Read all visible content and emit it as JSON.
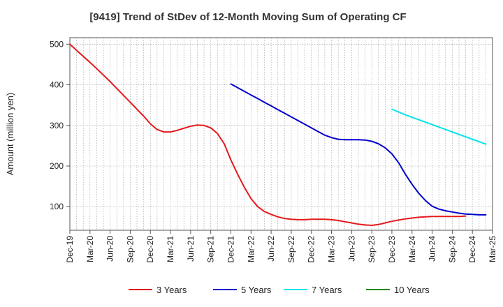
{
  "chart_data": {
    "type": "line",
    "title": "[9419]  Trend of StDev of 12-Month Moving Sum of Operating CF",
    "xlabel": "",
    "ylabel": "Amount (million yen)",
    "x_ticks": [
      "Dec-19",
      "Mar-20",
      "Jun-20",
      "Sep-20",
      "Dec-20",
      "Mar-21",
      "Jun-21",
      "Sep-21",
      "Dec-21",
      "Mar-22",
      "Jun-22",
      "Sep-22",
      "Dec-22",
      "Mar-23",
      "Jun-23",
      "Sep-23",
      "Dec-23",
      "Mar-24",
      "Jun-24",
      "Sep-24",
      "Dec-24",
      "Mar-25"
    ],
    "y_ticks": [
      100,
      200,
      300,
      400,
      500
    ],
    "ylim": [
      42,
      516
    ],
    "grid": true,
    "legend_position": "bottom",
    "colors": {
      "3y": "#e41a1c",
      "5y": "#0000cc",
      "7y": "#00e5ee",
      "10y": "#228b22"
    },
    "series": [
      {
        "name": "3 Years",
        "key": "3y",
        "start_index": 0,
        "values": [
          500,
          485,
          470,
          455,
          440,
          424,
          408,
          391,
          374,
          357,
          340,
          323,
          304,
          290,
          284,
          284,
          288,
          293,
          298,
          301,
          300,
          294,
          280,
          255,
          215,
          180,
          148,
          120,
          100,
          88,
          81,
          75,
          71,
          69,
          68,
          68,
          69,
          69,
          69,
          68,
          66,
          63,
          60,
          57,
          55,
          54,
          56,
          60,
          64,
          67,
          70,
          72,
          74,
          75,
          76,
          76,
          76,
          76,
          76,
          77
        ]
      },
      {
        "name": "5 Years",
        "key": "5y",
        "start_index": 24,
        "values": [
          402,
          393,
          384,
          375,
          366,
          357,
          348,
          339,
          330,
          321,
          312,
          303,
          294,
          285,
          276,
          270,
          266,
          265,
          265,
          265,
          264,
          261,
          255,
          245,
          230,
          208,
          180,
          155,
          133,
          115,
          101,
          94,
          90,
          87,
          84,
          82,
          81,
          80,
          80
        ]
      },
      {
        "name": "7 Years",
        "key": "7y",
        "start_index": 48,
        "values": [
          340,
          333,
          326,
          320,
          314,
          308,
          302,
          296,
          290,
          284,
          278,
          272,
          266,
          260,
          254
        ]
      },
      {
        "name": "10 Years",
        "key": "10y",
        "start_index": 0,
        "values": []
      }
    ]
  }
}
